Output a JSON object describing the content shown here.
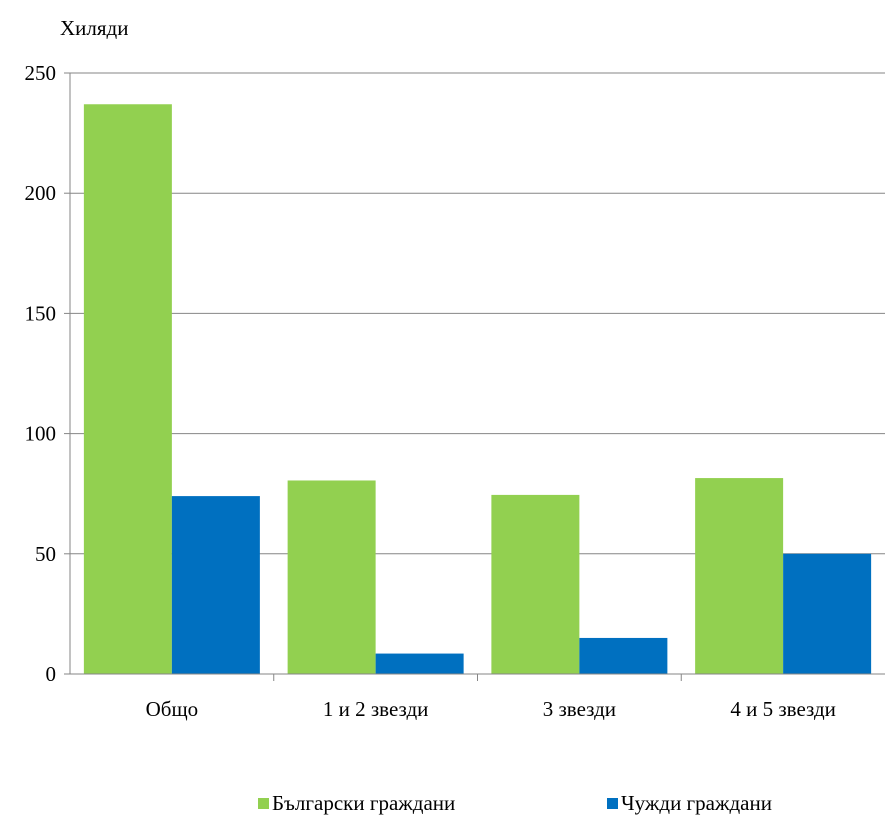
{
  "chart_data": {
    "type": "bar",
    "title": "",
    "ylabel": "Хиляди",
    "xlabel": "",
    "categories": [
      "Общо",
      "1 и 2 звезди",
      "3 звезди",
      "4 и 5 звезди"
    ],
    "series": [
      {
        "name": "Български граждани",
        "color": "#92d050",
        "values": [
          237,
          80.5,
          74.5,
          81.5
        ]
      },
      {
        "name": "Чужди граждани",
        "color": "#0070c0",
        "values": [
          74,
          8.5,
          15,
          50
        ]
      }
    ],
    "ylim": [
      0,
      250
    ],
    "yticks": [
      0,
      50,
      100,
      150,
      200,
      250
    ],
    "grid": true,
    "legend_position": "bottom"
  }
}
